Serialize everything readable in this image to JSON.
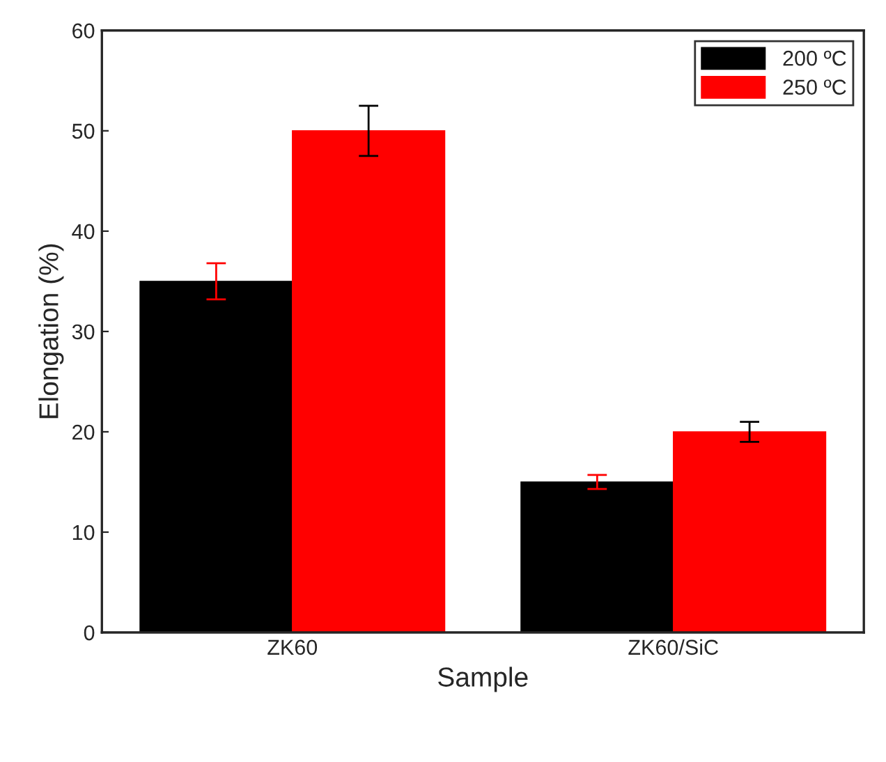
{
  "chart_data": {
    "type": "bar",
    "xlabel": "Sample",
    "ylabel": "Elongation (%)",
    "categories": [
      "ZK60",
      "ZK60/SiC"
    ],
    "series": [
      {
        "name": "200 ºC",
        "color": "#000000",
        "values": [
          35,
          15
        ],
        "errors": [
          1.8,
          0.7
        ]
      },
      {
        "name": "250 ºC",
        "color": "#ff0000",
        "values": [
          50,
          20
        ],
        "errors": [
          2.5,
          1.0
        ]
      }
    ],
    "ylim": [
      0,
      60
    ],
    "yticks": [
      0,
      10,
      20,
      30,
      40,
      50,
      60
    ],
    "grid": false,
    "legend": "top right"
  }
}
